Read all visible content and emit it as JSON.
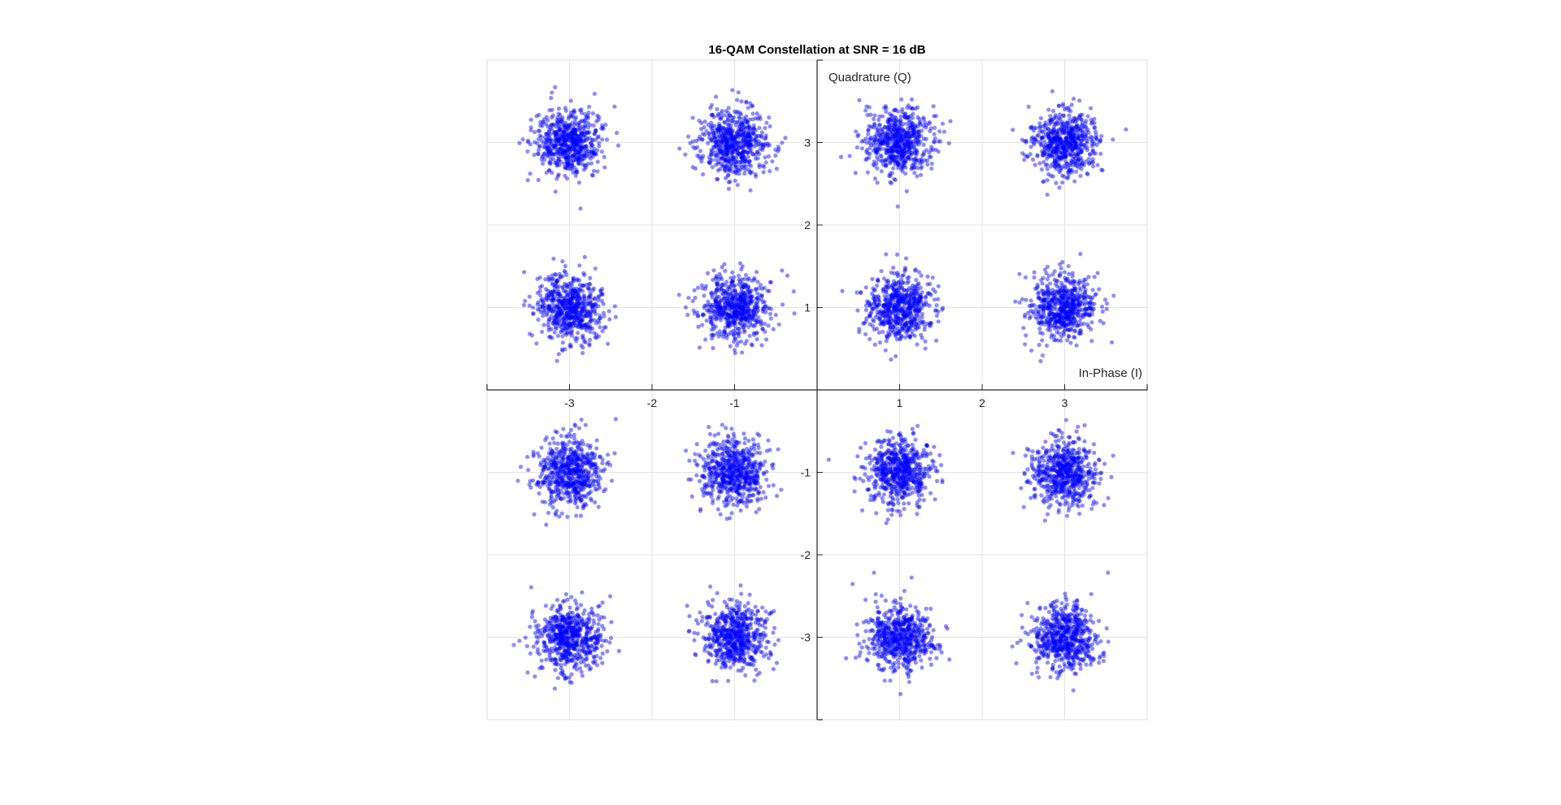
{
  "chart_data": {
    "type": "scatter",
    "title": "16-QAM Constellation at SNR = 16 dB",
    "xlabel": "In-Phase (I)",
    "ylabel": "Quadrature (Q)",
    "xlim": [
      -4,
      4
    ],
    "ylim": [
      -4,
      4
    ],
    "xticks": [
      -3,
      -2,
      -1,
      1,
      2,
      3
    ],
    "yticks": [
      -3,
      -2,
      -1,
      1,
      2,
      3
    ],
    "grid": true,
    "axes_through_origin": true,
    "marker_color": "#0000ff",
    "constellation_points": [
      [
        -3,
        3
      ],
      [
        -1,
        3
      ],
      [
        1,
        3
      ],
      [
        3,
        3
      ],
      [
        -3,
        1
      ],
      [
        -1,
        1
      ],
      [
        1,
        1
      ],
      [
        3,
        1
      ],
      [
        -3,
        -1
      ],
      [
        -1,
        -1
      ],
      [
        1,
        -1
      ],
      [
        3,
        -1
      ],
      [
        -3,
        -3
      ],
      [
        -1,
        -3
      ],
      [
        1,
        -3
      ],
      [
        3,
        -3
      ]
    ],
    "noise_std": 0.2,
    "samples_per_point": 600
  }
}
